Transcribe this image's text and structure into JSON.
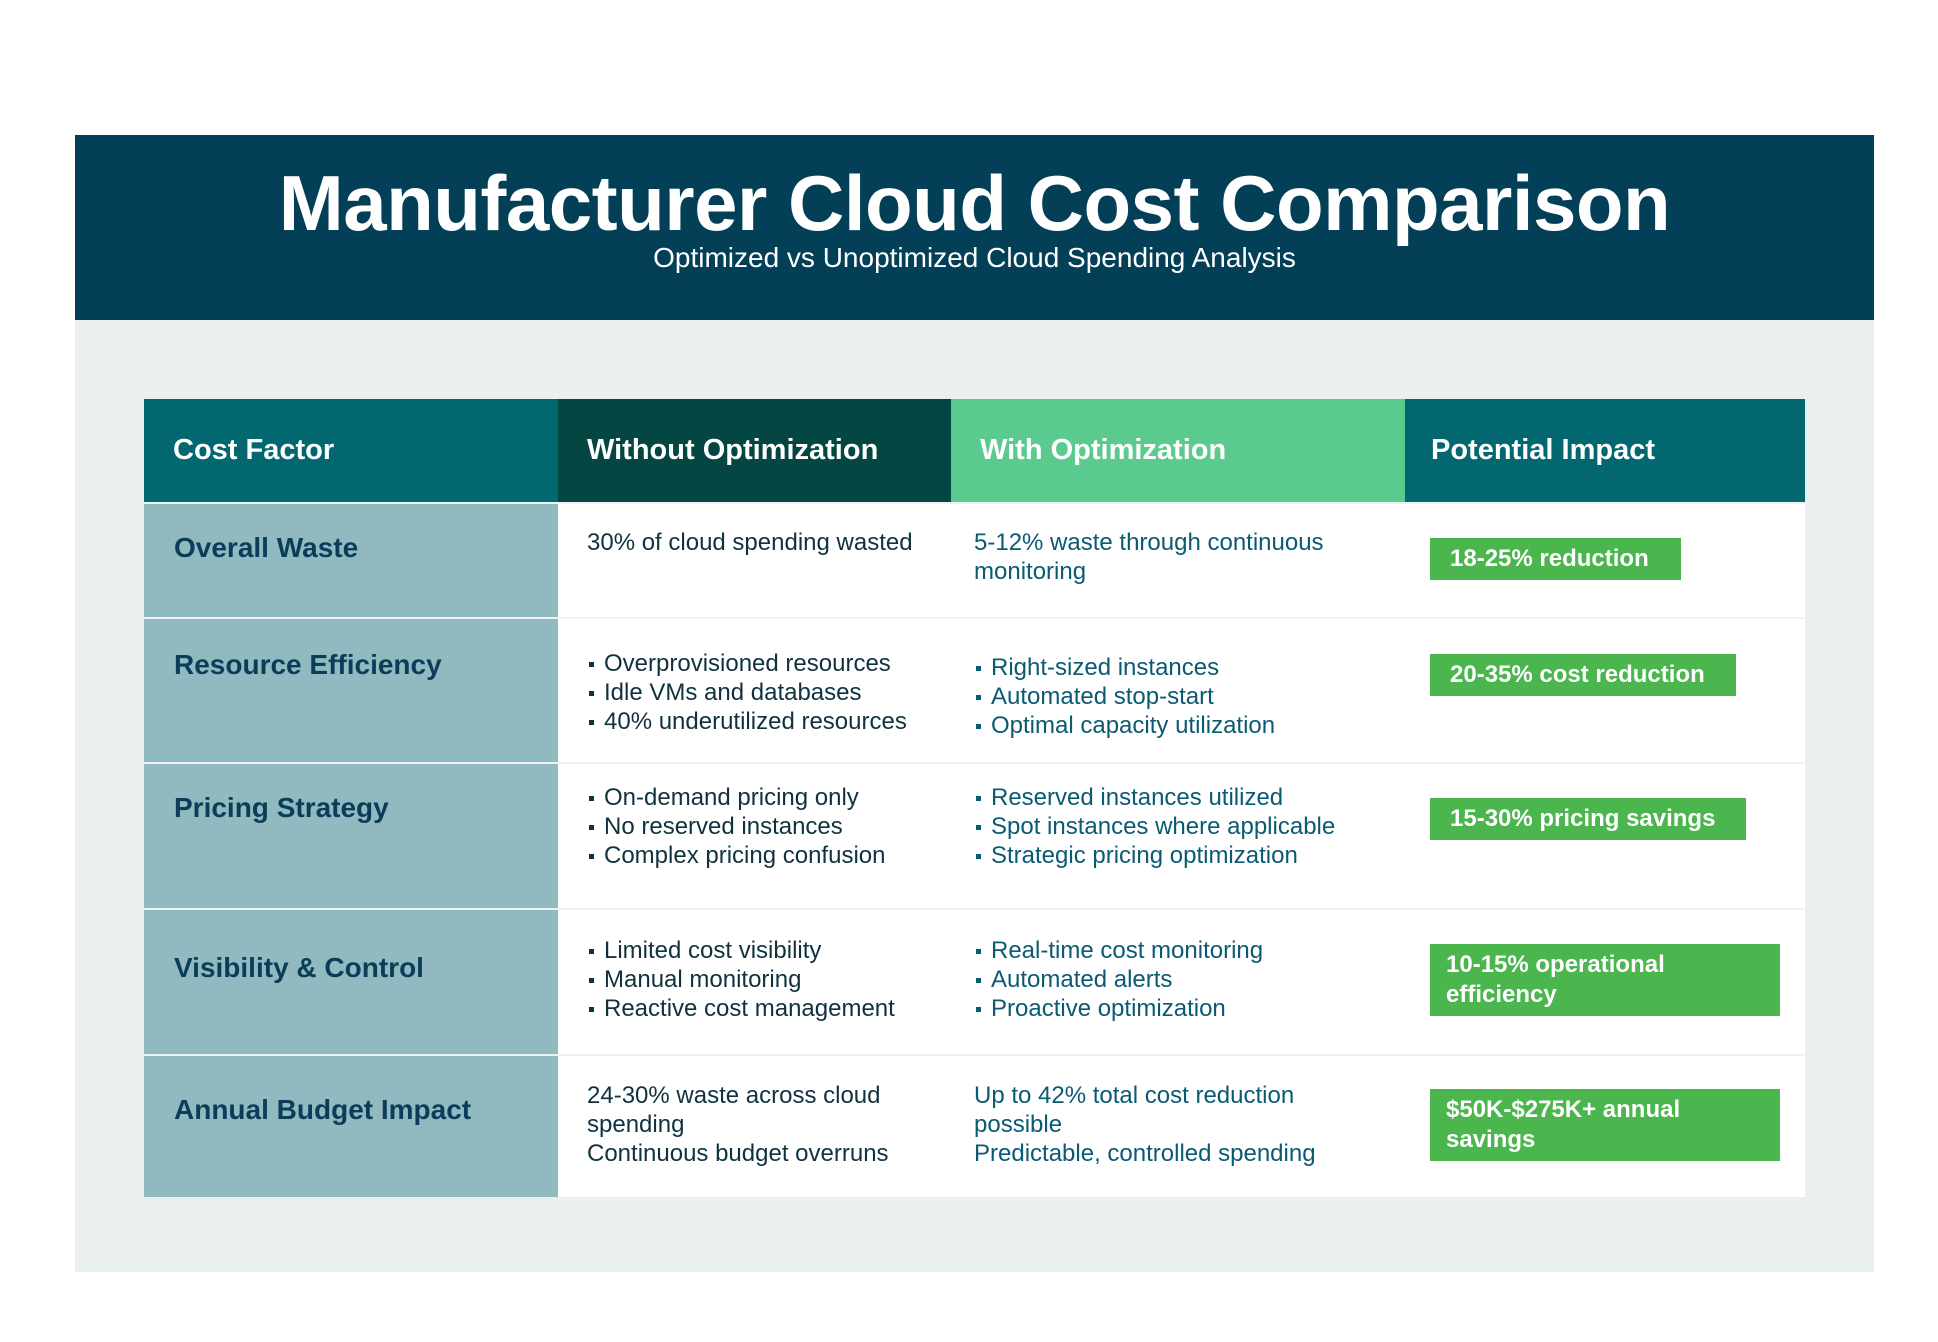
{
  "header": {
    "title": "Manufacturer Cloud Cost Comparison",
    "subtitle": "Optimized vs Unoptimized Cloud Spending Analysis"
  },
  "columns": [
    "Cost Factor",
    "Without Optimization",
    "With Optimization",
    "Potential Impact"
  ],
  "rows": [
    {
      "factor": "Overall Waste",
      "without": [
        "30% of cloud spending wasted"
      ],
      "with": [
        "5-12% waste through continuous monitoring"
      ],
      "impact": "18-25% reduction"
    },
    {
      "factor": "Resource Efficiency",
      "without": [
        "Overprovisioned resources",
        "Idle VMs and databases",
        "40% underutilized resources"
      ],
      "with": [
        "Right-sized instances",
        "Automated stop-start",
        "Optimal capacity utilization"
      ],
      "impact": "20-35% cost reduction"
    },
    {
      "factor": "Pricing Strategy",
      "without": [
        "On-demand pricing only",
        "No reserved instances",
        "Complex pricing confusion"
      ],
      "with": [
        "Reserved instances utilized",
        "Spot instances where applicable",
        "Strategic pricing optimization"
      ],
      "impact": "15-30% pricing savings"
    },
    {
      "factor": "Visibility & Control",
      "without": [
        "Limited cost visibility",
        "Manual monitoring",
        "Reactive cost management"
      ],
      "with": [
        "Real-time cost monitoring",
        "Automated alerts",
        "Proactive optimization"
      ],
      "impact": "10-15% operational efficiency"
    },
    {
      "factor": "Annual Budget Impact",
      "without": [
        "24-30% waste across cloud spending",
        "Continuous budget overruns"
      ],
      "with": [
        "Up to 42% total cost reduction possible",
        "Predictable, controlled spending"
      ],
      "impact": "$50K-$275K+ annual savings"
    }
  ],
  "colors": {
    "banner": "#034058",
    "header_cost_factor": "#02676f",
    "header_without": "#034642",
    "header_with": "#5bca8f",
    "header_impact": "#02676f",
    "factor_column": "#90babf",
    "impact_badge": "#4bb54e",
    "background": "#eaf0ef"
  }
}
